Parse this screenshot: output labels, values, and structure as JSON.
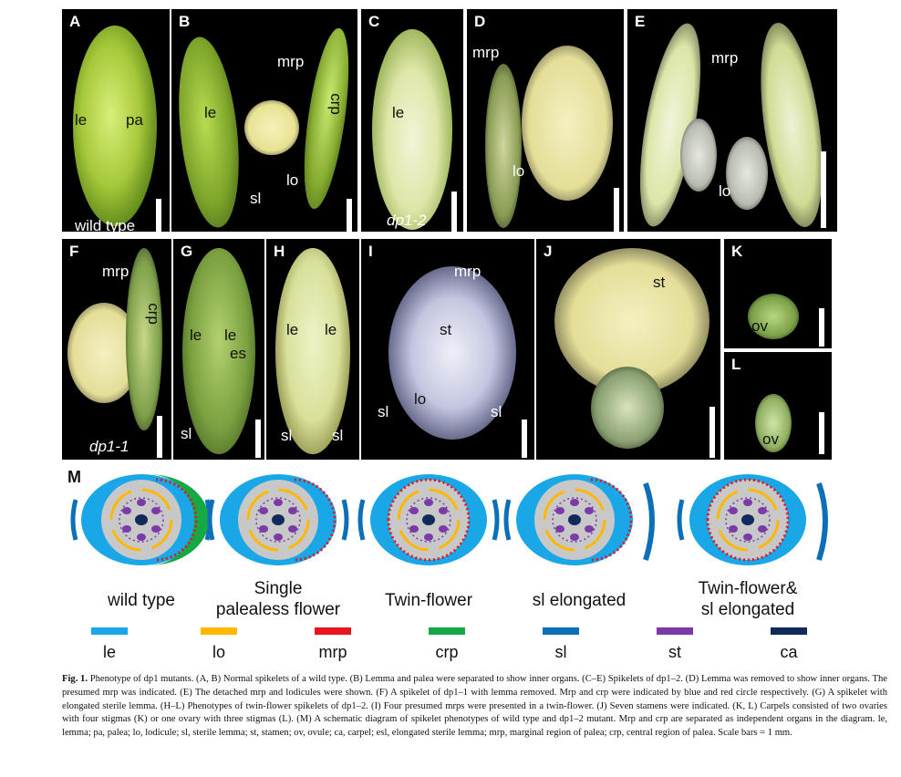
{
  "panels": [
    {
      "id": "A",
      "labels": [
        "le",
        "pa",
        "wild type"
      ]
    },
    {
      "id": "B",
      "labels": [
        "le",
        "mrp",
        "crp",
        "lo",
        "sl"
      ]
    },
    {
      "id": "C",
      "labels": [
        "le",
        "dp1-2"
      ]
    },
    {
      "id": "D",
      "labels": [
        "mrp",
        "lo"
      ]
    },
    {
      "id": "E",
      "labels": [
        "mrp",
        "lo"
      ]
    },
    {
      "id": "F",
      "labels": [
        "mrp",
        "crp",
        "dp1-1"
      ]
    },
    {
      "id": "G",
      "labels": [
        "le",
        "le",
        "es",
        "sl"
      ]
    },
    {
      "id": "H",
      "labels": [
        "le",
        "le",
        "sl",
        "sl"
      ]
    },
    {
      "id": "I",
      "labels": [
        "mrp",
        "st",
        "lo",
        "sl",
        "sl"
      ]
    },
    {
      "id": "J",
      "labels": [
        "st"
      ]
    },
    {
      "id": "K",
      "labels": [
        "ov"
      ]
    },
    {
      "id": "L",
      "labels": [
        "ov"
      ]
    }
  ],
  "schematic": {
    "label": "M",
    "conditions": [
      "wild type",
      "Single\npalealess flower",
      "Twin-flower",
      "sl elongated",
      "Twin-flower&\nsl elongated"
    ]
  },
  "legend": [
    {
      "label": "le",
      "color": "#1aa7e8"
    },
    {
      "label": "lo",
      "color": "#ffb800"
    },
    {
      "label": "mrp",
      "color": "#e8141e"
    },
    {
      "label": "crp",
      "color": "#16a845"
    },
    {
      "label": "sl",
      "color": "#0d6fb8"
    },
    {
      "label": "st",
      "color": "#7a3aa8"
    },
    {
      "label": "ca",
      "color": "#102a5c"
    }
  ],
  "caption": {
    "figure": "Fig. 1.",
    "text": "Phenotype of dp1 mutants. (A, B) Normal spikelets of a wild type. (B) Lemma and palea were separated to show inner organs. (C–E) Spikelets of dp1–2. (D) Lemma was removed to show inner organs. The presumed mrp was indicated. (E) The detached mrp and lodicules were shown. (F) A spikelet of dp1–1 with lemma removed. Mrp and crp were indicated by blue and red circle respectively. (G) A spikelet with elongated sterile lemma. (H–L) Phenotypes of twin-flower spikelets of dp1–2. (I) Four presumed mrps were presented in a twin-flower. (J) Seven stamens were indicated. (K, L) Carpels consisted of two ovaries with four stigmas (K) or one ovary with three stigmas (L). (M) A schematic diagram of spikelet phenotypes of wild type and dp1–2 mutant. Mrp and crp are separated as independent organs in the diagram. le, lemma; pa, palea; lo, lodicule; sl, sterile lemma; st, stamen; ov, ovule; ca, carpel; esl, elongated sterile lemma; mrp, marginal region of palea; crp, central region of palea. Scale bars = 1 mm."
  }
}
